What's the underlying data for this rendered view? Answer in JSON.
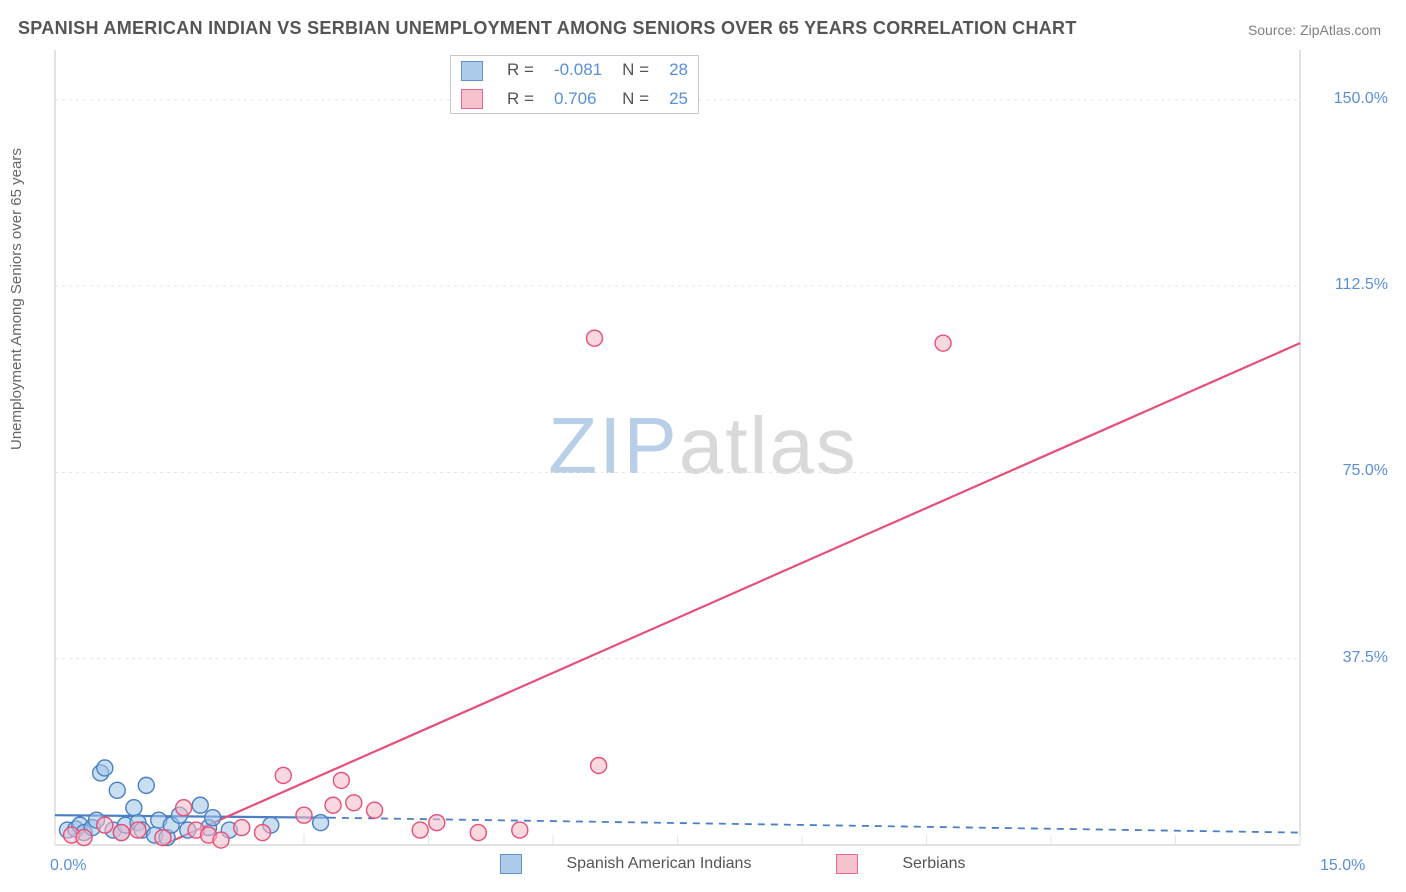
{
  "title": "SPANISH AMERICAN INDIAN VS SERBIAN UNEMPLOYMENT AMONG SENIORS OVER 65 YEARS CORRELATION CHART",
  "source": "Source: ZipAtlas.com",
  "watermark_a": "ZIP",
  "watermark_b": "atlas",
  "ylabel": "Unemployment Among Seniors over 65 years",
  "chart": {
    "type": "scatter-correlation",
    "background_color": "#ffffff",
    "grid_color": "#e5e5e5",
    "axis_color": "#d0d0d0",
    "ylim": [
      0,
      160
    ],
    "xlim": [
      0,
      15
    ],
    "yticks": [
      {
        "v": 37.5,
        "label": "37.5%"
      },
      {
        "v": 75.0,
        "label": "75.0%"
      },
      {
        "v": 112.5,
        "label": "112.5%"
      },
      {
        "v": 150.0,
        "label": "150.0%"
      }
    ],
    "xtick_left": "0.0%",
    "xtick_right": "15.0%",
    "series": [
      {
        "name": "Spanish American Indians",
        "fill": "#9ec3e8",
        "stroke": "#4a7fc5",
        "fill_opacity": 0.55,
        "marker_r": 8,
        "R": "-0.081",
        "N": "28",
        "trend_solid": {
          "x1": 0.0,
          "y1": 6.0,
          "x2": 3.3,
          "y2": 5.5
        },
        "trend_dash": {
          "x1": 3.3,
          "y1": 5.5,
          "x2": 15.0,
          "y2": 2.5
        },
        "points": [
          [
            0.15,
            3.0
          ],
          [
            0.25,
            3.2
          ],
          [
            0.3,
            4.0
          ],
          [
            0.35,
            2.5
          ],
          [
            0.45,
            3.5
          ],
          [
            0.5,
            5.0
          ],
          [
            0.55,
            14.5
          ],
          [
            0.6,
            15.5
          ],
          [
            0.7,
            3.0
          ],
          [
            0.75,
            11.0
          ],
          [
            0.8,
            2.5
          ],
          [
            0.85,
            4.0
          ],
          [
            0.95,
            7.5
          ],
          [
            1.0,
            4.5
          ],
          [
            1.05,
            3.0
          ],
          [
            1.1,
            12.0
          ],
          [
            1.2,
            2.0
          ],
          [
            1.25,
            5.0
          ],
          [
            1.35,
            1.5
          ],
          [
            1.4,
            4.0
          ],
          [
            1.5,
            6.0
          ],
          [
            1.6,
            3.0
          ],
          [
            1.75,
            8.0
          ],
          [
            1.85,
            3.5
          ],
          [
            1.9,
            5.5
          ],
          [
            2.1,
            3.0
          ],
          [
            2.6,
            4.0
          ],
          [
            3.2,
            4.5
          ]
        ]
      },
      {
        "name": "Serbians",
        "fill": "#f5b8c6",
        "stroke": "#e64f78",
        "fill_opacity": 0.55,
        "marker_r": 8,
        "R": "0.706",
        "N": "25",
        "trend_solid": {
          "x1": 1.3,
          "y1": 0.0,
          "x2": 15.0,
          "y2": 101.0
        },
        "trend_dash": null,
        "points": [
          [
            0.2,
            2.0
          ],
          [
            0.35,
            1.5
          ],
          [
            0.6,
            4.0
          ],
          [
            0.8,
            2.5
          ],
          [
            1.0,
            3.0
          ],
          [
            1.3,
            1.5
          ],
          [
            1.55,
            7.5
          ],
          [
            1.7,
            3.0
          ],
          [
            1.85,
            2.0
          ],
          [
            2.0,
            1.0
          ],
          [
            2.25,
            3.5
          ],
          [
            2.5,
            2.5
          ],
          [
            2.75,
            14.0
          ],
          [
            3.0,
            6.0
          ],
          [
            3.35,
            8.0
          ],
          [
            3.45,
            13.0
          ],
          [
            3.6,
            8.5
          ],
          [
            3.85,
            7.0
          ],
          [
            4.4,
            3.0
          ],
          [
            4.6,
            4.5
          ],
          [
            5.1,
            2.5
          ],
          [
            5.6,
            3.0
          ],
          [
            6.55,
            16.0
          ],
          [
            6.5,
            102.0
          ],
          [
            10.7,
            101.0
          ]
        ]
      }
    ],
    "legend_labels": {
      "R_prefix": "R =",
      "N_prefix": "N ="
    }
  }
}
